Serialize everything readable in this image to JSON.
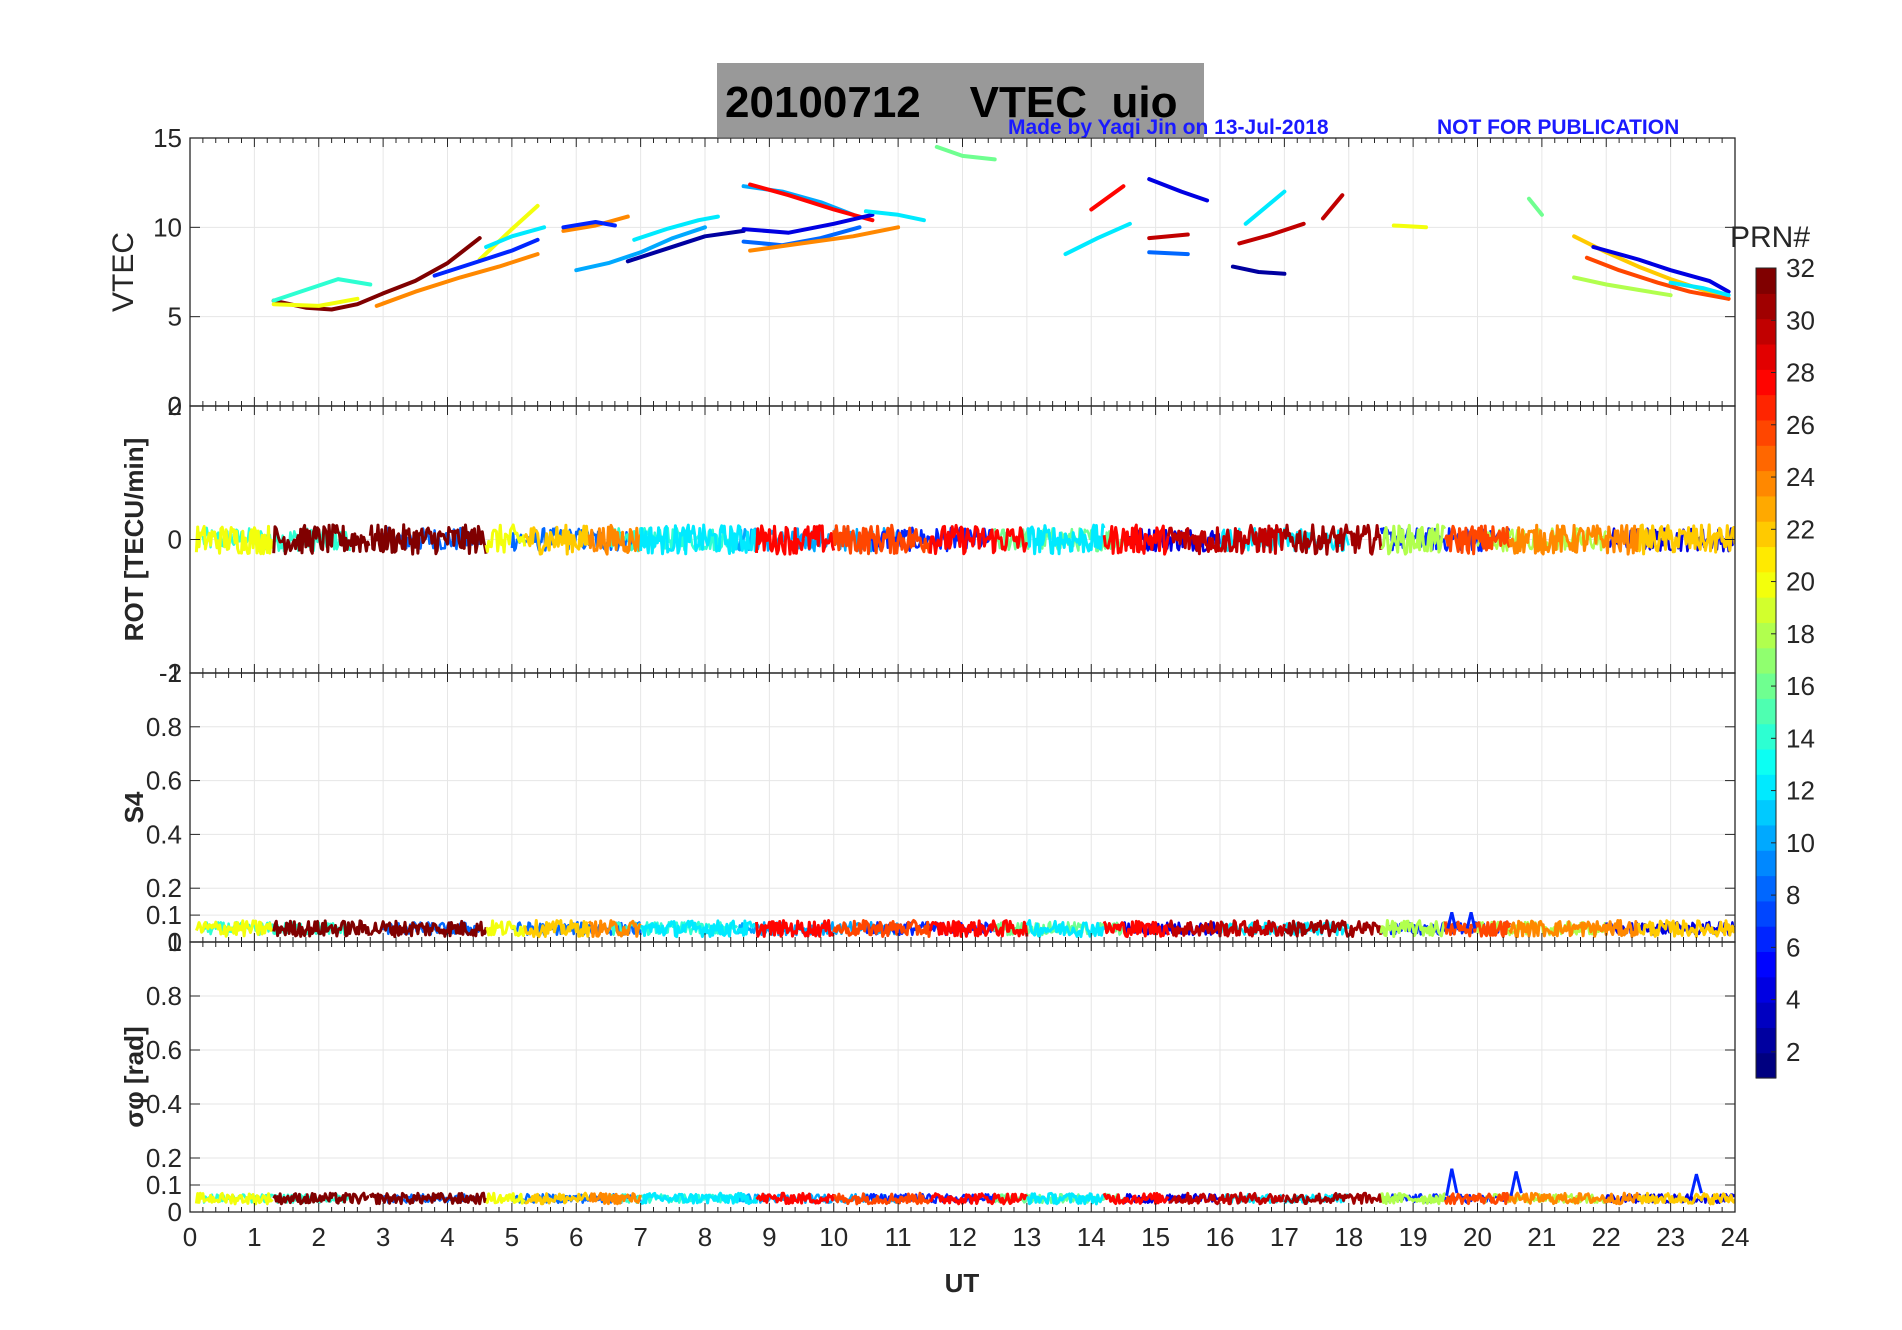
{
  "chart_data": {
    "type": "line",
    "title": "20100712    VTEC  uio",
    "credit": "Made by Yaqi Jin on 13-Jul-2018",
    "notice": "NOT FOR PUBLICATION",
    "xlabel": "UT",
    "xlim": [
      0,
      24
    ],
    "xticks": [
      "0",
      "1",
      "2",
      "3",
      "4",
      "5",
      "6",
      "7",
      "8",
      "9",
      "10",
      "11",
      "12",
      "13",
      "14",
      "15",
      "16",
      "17",
      "18",
      "19",
      "20",
      "21",
      "22",
      "23",
      "24"
    ],
    "colorbar": {
      "label": "PRN#",
      "range": [
        1,
        32
      ],
      "ticks": [
        "2",
        "4",
        "6",
        "8",
        "10",
        "12",
        "14",
        "16",
        "18",
        "20",
        "22",
        "24",
        "26",
        "28",
        "30",
        "32"
      ],
      "colors": [
        "#00008f",
        "#0000cf",
        "#0010ff",
        "#0050ff",
        "#0090ff",
        "#00d0ff",
        "#40ffc0",
        "#80ff80",
        "#c0ff40",
        "#ffff00",
        "#ffc000",
        "#ff8000",
        "#ff4000",
        "#ff0000",
        "#c00000",
        "#800000"
      ]
    },
    "panels": [
      {
        "ylabel": "VTEC",
        "ylim": [
          0,
          15
        ],
        "yticks": [
          "0",
          "5",
          "10",
          "15"
        ],
        "series": [
          {
            "prn": 32,
            "x": [
              1.3,
              1.8,
              2.2,
              2.6,
              3.0,
              3.5,
              4.0,
              4.5
            ],
            "y": [
              5.9,
              5.5,
              5.4,
              5.7,
              6.3,
              7.0,
              8.0,
              9.4
            ]
          },
          {
            "prn": 14,
            "x": [
              1.3,
              1.8,
              2.3,
              2.8
            ],
            "y": [
              5.9,
              6.5,
              7.1,
              6.8
            ]
          },
          {
            "prn": 20,
            "x": [
              1.3,
              2.0,
              2.6
            ],
            "y": [
              5.7,
              5.6,
              6.0
            ]
          },
          {
            "prn": 20,
            "x": [
              4.5,
              5.0,
              5.4
            ],
            "y": [
              8.2,
              9.9,
              11.2
            ]
          },
          {
            "prn": 12,
            "x": [
              4.6,
              5.0,
              5.5
            ],
            "y": [
              8.9,
              9.5,
              10.0
            ]
          },
          {
            "prn": 6,
            "x": [
              3.8,
              4.4,
              5.0,
              5.4
            ],
            "y": [
              7.3,
              8.0,
              8.7,
              9.3
            ]
          },
          {
            "prn": 24,
            "x": [
              2.9,
              3.5,
              4.2,
              4.8,
              5.4
            ],
            "y": [
              5.6,
              6.4,
              7.2,
              7.8,
              8.5
            ]
          },
          {
            "prn": 24,
            "x": [
              5.8,
              6.3,
              6.8
            ],
            "y": [
              9.8,
              10.1,
              10.6
            ]
          },
          {
            "prn": 6,
            "x": [
              5.8,
              6.3,
              6.6
            ],
            "y": [
              10.0,
              10.3,
              10.1
            ]
          },
          {
            "prn": 10,
            "x": [
              6.0,
              6.5,
              7.0,
              7.5,
              8.0
            ],
            "y": [
              7.6,
              8.0,
              8.6,
              9.4,
              10.0
            ]
          },
          {
            "prn": 12,
            "x": [
              6.9,
              7.4,
              7.9,
              8.2
            ],
            "y": [
              9.3,
              9.9,
              10.4,
              10.6
            ]
          },
          {
            "prn": 2,
            "x": [
              6.8,
              7.4,
              8.0,
              8.6
            ],
            "y": [
              8.1,
              8.8,
              9.5,
              9.8
            ]
          },
          {
            "prn": 10,
            "x": [
              8.6,
              9.2,
              9.8,
              10.3
            ],
            "y": [
              12.3,
              12.0,
              11.4,
              10.7
            ]
          },
          {
            "prn": 28,
            "x": [
              8.7,
              9.3,
              10.0,
              10.6
            ],
            "y": [
              12.4,
              11.8,
              11.0,
              10.4
            ]
          },
          {
            "prn": 4,
            "x": [
              8.6,
              9.3,
              10.0,
              10.6
            ],
            "y": [
              9.9,
              9.7,
              10.2,
              10.7
            ]
          },
          {
            "prn": 8,
            "x": [
              8.6,
              9.2,
              9.8,
              10.4
            ],
            "y": [
              9.2,
              9.0,
              9.4,
              10.0
            ]
          },
          {
            "prn": 24,
            "x": [
              8.7,
              9.5,
              10.3,
              11.0
            ],
            "y": [
              8.7,
              9.1,
              9.5,
              10.0
            ]
          },
          {
            "prn": 12,
            "x": [
              10.5,
              11.0,
              11.4
            ],
            "y": [
              10.9,
              10.7,
              10.4
            ]
          },
          {
            "prn": 16,
            "x": [
              11.6,
              12.0,
              12.5
            ],
            "y": [
              14.5,
              14.0,
              13.8
            ]
          },
          {
            "prn": 28,
            "x": [
              14.0,
              14.5
            ],
            "y": [
              11.0,
              12.3
            ]
          },
          {
            "prn": 12,
            "x": [
              13.6,
              14.1,
              14.6
            ],
            "y": [
              8.5,
              9.4,
              10.2
            ]
          },
          {
            "prn": 4,
            "x": [
              14.9,
              15.4,
              15.8
            ],
            "y": [
              12.7,
              12.0,
              11.5
            ]
          },
          {
            "prn": 30,
            "x": [
              14.9,
              15.5
            ],
            "y": [
              9.4,
              9.6
            ]
          },
          {
            "prn": 8,
            "x": [
              14.9,
              15.5
            ],
            "y": [
              8.6,
              8.5
            ]
          },
          {
            "prn": 12,
            "x": [
              16.4,
              16.7,
              17.0
            ],
            "y": [
              10.2,
              11.1,
              12.0
            ]
          },
          {
            "prn": 30,
            "x": [
              16.3,
              16.8,
              17.3
            ],
            "y": [
              9.1,
              9.6,
              10.2
            ]
          },
          {
            "prn": 2,
            "x": [
              16.2,
              16.6,
              17.0
            ],
            "y": [
              7.8,
              7.5,
              7.4
            ]
          },
          {
            "prn": 30,
            "x": [
              17.6,
              17.9
            ],
            "y": [
              10.5,
              11.8
            ]
          },
          {
            "prn": 20,
            "x": [
              18.7,
              19.2
            ],
            "y": [
              10.1,
              10.0
            ]
          },
          {
            "prn": 16,
            "x": [
              20.8,
              21.0
            ],
            "y": [
              11.6,
              10.7
            ]
          },
          {
            "prn": 22,
            "x": [
              21.5,
              22.0,
              22.5,
              23.0,
              23.5,
              23.9
            ],
            "y": [
              9.5,
              8.6,
              7.8,
              7.1,
              6.5,
              6.0
            ]
          },
          {
            "prn": 4,
            "x": [
              21.8,
              22.5,
              23.0,
              23.6,
              23.9
            ],
            "y": [
              8.9,
              8.2,
              7.6,
              7.0,
              6.4
            ]
          },
          {
            "prn": 26,
            "x": [
              21.7,
              22.2,
              22.8,
              23.3,
              23.9
            ],
            "y": [
              8.3,
              7.6,
              6.9,
              6.4,
              6.0
            ]
          },
          {
            "prn": 18,
            "x": [
              21.5,
              22.0,
              22.5,
              23.0
            ],
            "y": [
              7.2,
              6.8,
              6.5,
              6.2
            ]
          },
          {
            "prn": 12,
            "x": [
              23.0,
              23.5,
              23.9
            ],
            "y": [
              6.9,
              6.6,
              6.2
            ]
          }
        ]
      },
      {
        "ylabel": "ROT [TECU/min]",
        "ylim": [
          -2,
          2
        ],
        "yticks": [
          "-2",
          "0",
          "2"
        ],
        "band": {
          "center": 0.0,
          "amplitude": 0.22
        }
      },
      {
        "ylabel": "S4",
        "ylim": [
          0,
          1
        ],
        "yticks": [
          "0",
          "0.1",
          "0.2",
          "0.4",
          "0.6",
          "0.8",
          "1"
        ],
        "band": {
          "center": 0.05,
          "amplitude": 0.03
        }
      },
      {
        "ylabel": "σφ [rad]",
        "ylim": [
          0,
          1
        ],
        "yticks": [
          "0",
          "0.1",
          "0.2",
          "0.4",
          "0.6",
          "0.8",
          "1"
        ],
        "band": {
          "center": 0.05,
          "amplitude": 0.02
        }
      }
    ]
  }
}
